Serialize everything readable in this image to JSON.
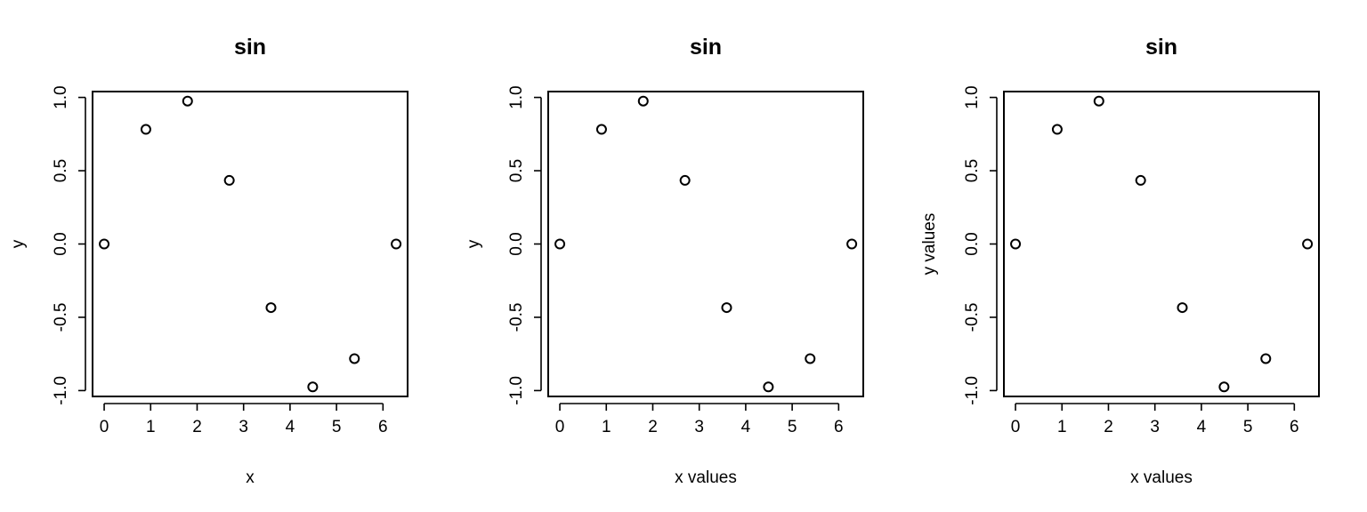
{
  "chart_data": [
    {
      "type": "scatter",
      "title": "sin",
      "xlabel": "x",
      "ylabel": "y",
      "x": [
        0,
        0.898,
        1.795,
        2.693,
        3.59,
        4.488,
        5.386,
        6.283
      ],
      "y": [
        0,
        0.782,
        0.975,
        0.434,
        -0.434,
        -0.975,
        -0.782,
        0
      ],
      "xlim": [
        -0.25,
        6.53
      ],
      "ylim": [
        -1.04,
        1.04
      ],
      "xticks": [
        0,
        1,
        2,
        3,
        4,
        5,
        6
      ],
      "xtick_labels": [
        "0",
        "1",
        "2",
        "3",
        "4",
        "5",
        "6"
      ],
      "yticks": [
        -1.0,
        -0.5,
        0.0,
        0.5,
        1.0
      ],
      "ytick_labels": [
        "-1.0",
        "-0.5",
        "0.0",
        "0.5",
        "1.0"
      ],
      "grid": false,
      "marker": "open-circle"
    },
    {
      "type": "scatter",
      "title": "sin",
      "xlabel": "x values",
      "ylabel": "y",
      "x": [
        0,
        0.898,
        1.795,
        2.693,
        3.59,
        4.488,
        5.386,
        6.283
      ],
      "y": [
        0,
        0.782,
        0.975,
        0.434,
        -0.434,
        -0.975,
        -0.782,
        0
      ],
      "xlim": [
        -0.25,
        6.53
      ],
      "ylim": [
        -1.04,
        1.04
      ],
      "xticks": [
        0,
        1,
        2,
        3,
        4,
        5,
        6
      ],
      "xtick_labels": [
        "0",
        "1",
        "2",
        "3",
        "4",
        "5",
        "6"
      ],
      "yticks": [
        -1.0,
        -0.5,
        0.0,
        0.5,
        1.0
      ],
      "ytick_labels": [
        "-1.0",
        "-0.5",
        "0.0",
        "0.5",
        "1.0"
      ],
      "grid": false,
      "marker": "open-circle"
    },
    {
      "type": "scatter",
      "title": "sin",
      "xlabel": "x values",
      "ylabel": "y values",
      "x": [
        0,
        0.898,
        1.795,
        2.693,
        3.59,
        4.488,
        5.386,
        6.283
      ],
      "y": [
        0,
        0.782,
        0.975,
        0.434,
        -0.434,
        -0.975,
        -0.782,
        0
      ],
      "xlim": [
        -0.25,
        6.53
      ],
      "ylim": [
        -1.04,
        1.04
      ],
      "xticks": [
        0,
        1,
        2,
        3,
        4,
        5,
        6
      ],
      "xtick_labels": [
        "0",
        "1",
        "2",
        "3",
        "4",
        "5",
        "6"
      ],
      "yticks": [
        -1.0,
        -0.5,
        0.0,
        0.5,
        1.0
      ],
      "ytick_labels": [
        "-1.0",
        "-0.5",
        "0.0",
        "0.5",
        "1.0"
      ],
      "grid": false,
      "marker": "open-circle"
    }
  ]
}
